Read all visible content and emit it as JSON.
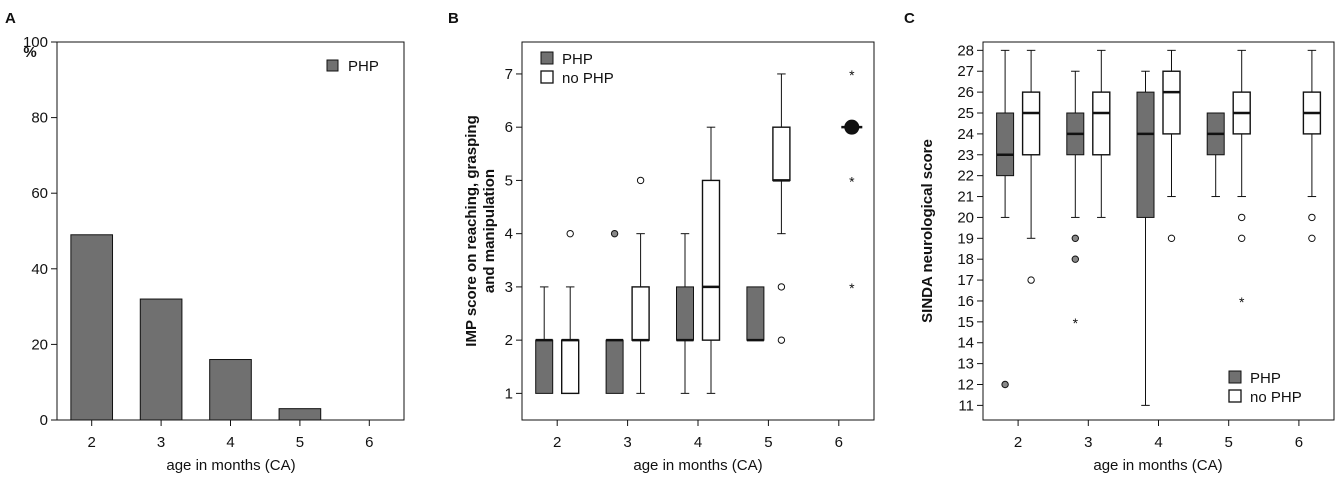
{
  "figure": {
    "colors": {
      "php_fill": "#707070",
      "nophp_fill": "#ffffff",
      "stroke": "#111111"
    }
  },
  "chart_data": [
    {
      "type": "bar",
      "panel": "A",
      "y_unit_label": "%",
      "xlabel": "age in months (CA)",
      "ylabel": "",
      "categories": [
        "2",
        "3",
        "4",
        "5",
        "6"
      ],
      "series": [
        {
          "name": "PHP",
          "values": [
            49,
            32,
            16,
            3,
            0
          ]
        }
      ],
      "ylim": [
        0,
        100
      ],
      "yticks": [
        "0",
        "20",
        "40",
        "60",
        "80",
        "100"
      ],
      "legend_placement": "top-right",
      "grid": false
    },
    {
      "type": "box",
      "panel": "B",
      "xlabel": "age in months (CA)",
      "ylabel": "IMP score on reaching, grasping",
      "ylabel2": "and manipulation",
      "categories": [
        "2",
        "3",
        "4",
        "5",
        "6"
      ],
      "ylim": [
        0.5,
        7.6
      ],
      "yticks": [
        "1",
        "2",
        "3",
        "4",
        "5",
        "6",
        "7"
      ],
      "legend_placement": "top-left",
      "grid": false,
      "series": [
        {
          "name": "PHP",
          "boxes": [
            {
              "cat": "2",
              "min": 1,
              "q1": 1,
              "median": 2,
              "q3": 2,
              "max": 3,
              "outliers": []
            },
            {
              "cat": "3",
              "min": 1,
              "q1": 1,
              "median": 2,
              "q3": 2,
              "max": 2,
              "outliers": [
                4
              ]
            },
            {
              "cat": "4",
              "min": 1,
              "q1": 2,
              "median": 2,
              "q3": 3,
              "max": 4,
              "outliers": []
            },
            {
              "cat": "5",
              "min": 2,
              "q1": 2,
              "median": 2,
              "q3": 3,
              "max": 3,
              "outliers": []
            }
          ]
        },
        {
          "name": "no PHP",
          "boxes": [
            {
              "cat": "2",
              "min": 1,
              "q1": 1,
              "median": 2,
              "q3": 2,
              "max": 3,
              "outliers": [
                4
              ]
            },
            {
              "cat": "3",
              "min": 1,
              "q1": 2,
              "median": 2,
              "q3": 3,
              "max": 4,
              "outliers": [
                5
              ]
            },
            {
              "cat": "4",
              "min": 1,
              "q1": 2,
              "median": 3,
              "q3": 5,
              "max": 6,
              "outliers": []
            },
            {
              "cat": "5",
              "min": 4,
              "q1": 5,
              "median": 5,
              "q3": 6,
              "max": 7,
              "outliers": [
                3,
                2
              ]
            },
            {
              "cat": "6",
              "min": 6,
              "q1": 6,
              "median": 6,
              "q3": 6,
              "max": 6,
              "outliers": [],
              "extremes": [
                7,
                5,
                3
              ]
            }
          ]
        }
      ]
    },
    {
      "type": "box",
      "panel": "C",
      "xlabel": "age in months (CA)",
      "ylabel": "SINDA neurological score",
      "categories": [
        "2",
        "3",
        "4",
        "5",
        "6"
      ],
      "ylim": [
        10.3,
        28.4
      ],
      "yticks": [
        "11",
        "12",
        "13",
        "14",
        "15",
        "16",
        "17",
        "18",
        "19",
        "20",
        "21",
        "22",
        "23",
        "24",
        "25",
        "26",
        "27",
        "28"
      ],
      "legend_placement": "bottom-right",
      "grid": false,
      "series": [
        {
          "name": "PHP",
          "boxes": [
            {
              "cat": "2",
              "min": 20,
              "q1": 22,
              "median": 23,
              "q3": 25,
              "max": 28,
              "outliers": [
                12
              ]
            },
            {
              "cat": "3",
              "min": 20,
              "q1": 23,
              "median": 24,
              "q3": 25,
              "max": 27,
              "outliers": [
                19,
                18
              ],
              "extremes": [
                15
              ]
            },
            {
              "cat": "4",
              "min": 11,
              "q1": 20,
              "median": 24,
              "q3": 26,
              "max": 27,
              "outliers": []
            },
            {
              "cat": "5",
              "min": 21,
              "q1": 23,
              "median": 24,
              "q3": 25,
              "max": 25,
              "outliers": []
            }
          ]
        },
        {
          "name": "no PHP",
          "boxes": [
            {
              "cat": "2",
              "min": 19,
              "q1": 23,
              "median": 25,
              "q3": 26,
              "max": 28,
              "outliers": [
                17
              ]
            },
            {
              "cat": "3",
              "min": 20,
              "q1": 23,
              "median": 25,
              "q3": 26,
              "max": 28,
              "outliers": []
            },
            {
              "cat": "4",
              "min": 21,
              "q1": 24,
              "median": 26,
              "q3": 27,
              "max": 28,
              "outliers": [
                19
              ]
            },
            {
              "cat": "5",
              "min": 21,
              "q1": 24,
              "median": 25,
              "q3": 26,
              "max": 28,
              "outliers": [
                20,
                19
              ],
              "extremes": [
                16
              ]
            },
            {
              "cat": "6",
              "min": 21,
              "q1": 24,
              "median": 25,
              "q3": 26,
              "max": 28,
              "outliers": [
                20,
                19
              ]
            }
          ]
        }
      ]
    }
  ]
}
